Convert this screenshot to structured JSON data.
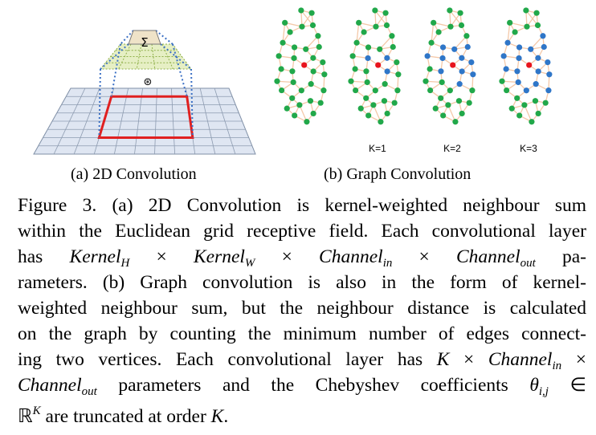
{
  "figure": {
    "symbols": {
      "sum": "Σ",
      "conv": "⊛"
    },
    "graph_labels": [
      "K=1",
      "K=2",
      "K=3"
    ],
    "subcaptions": [
      "(a) 2D Convolution",
      "(b) Graph Convolution"
    ],
    "caption_lines": [
      [
        {
          "text": "Figure 3. (a) 2D Convolution is kernel-weighted neighbour sum",
          "style": "r"
        }
      ],
      [
        {
          "text": "within the Euclidean grid receptive field. Each convolutional layer",
          "style": "r"
        }
      ],
      [
        {
          "text": "has ",
          "style": "r"
        },
        {
          "text": "Kernel",
          "style": "i"
        },
        {
          "text": "H",
          "style": "isub"
        },
        {
          "text": " × ",
          "style": "r"
        },
        {
          "text": "Kernel",
          "style": "i"
        },
        {
          "text": "W",
          "style": "isub"
        },
        {
          "text": " × ",
          "style": "r"
        },
        {
          "text": "Channel",
          "style": "i"
        },
        {
          "text": "in",
          "style": "isub"
        },
        {
          "text": " × ",
          "style": "r"
        },
        {
          "text": "Channel",
          "style": "i"
        },
        {
          "text": "out",
          "style": "isub"
        },
        {
          "text": " pa-",
          "style": "r"
        }
      ],
      [
        {
          "text": "rameters.  (b) Graph convolution is also in the form of kernel-",
          "style": "r"
        }
      ],
      [
        {
          "text": "weighted neighbour sum, but the neighbour distance is calculated",
          "style": "r"
        }
      ],
      [
        {
          "text": "on the graph by counting the minimum number of edges connect-",
          "style": "r"
        }
      ],
      [
        {
          "text": "ing two vertices. Each convolutional layer has ",
          "style": "r"
        },
        {
          "text": "K",
          "style": "i"
        },
        {
          "text": " × ",
          "style": "r"
        },
        {
          "text": "Channel",
          "style": "i"
        },
        {
          "text": "in",
          "style": "isub"
        },
        {
          "text": " ×",
          "style": "r"
        }
      ],
      [
        {
          "text": "Channel",
          "style": "i"
        },
        {
          "text": "out",
          "style": "isub"
        },
        {
          "text": " parameters and the Chebyshev coefficients ",
          "style": "r"
        },
        {
          "text": "θ",
          "style": "i"
        },
        {
          "text": "i,j",
          "style": "isub"
        },
        {
          "text": " ∈",
          "style": "r"
        }
      ],
      [
        {
          "text": "ℝ",
          "style": "r"
        },
        {
          "text": "K",
          "style": "isup"
        },
        {
          "text": " are truncated at order ",
          "style": "r"
        },
        {
          "text": "K",
          "style": "i"
        },
        {
          "text": ".",
          "style": "r"
        }
      ]
    ]
  }
}
